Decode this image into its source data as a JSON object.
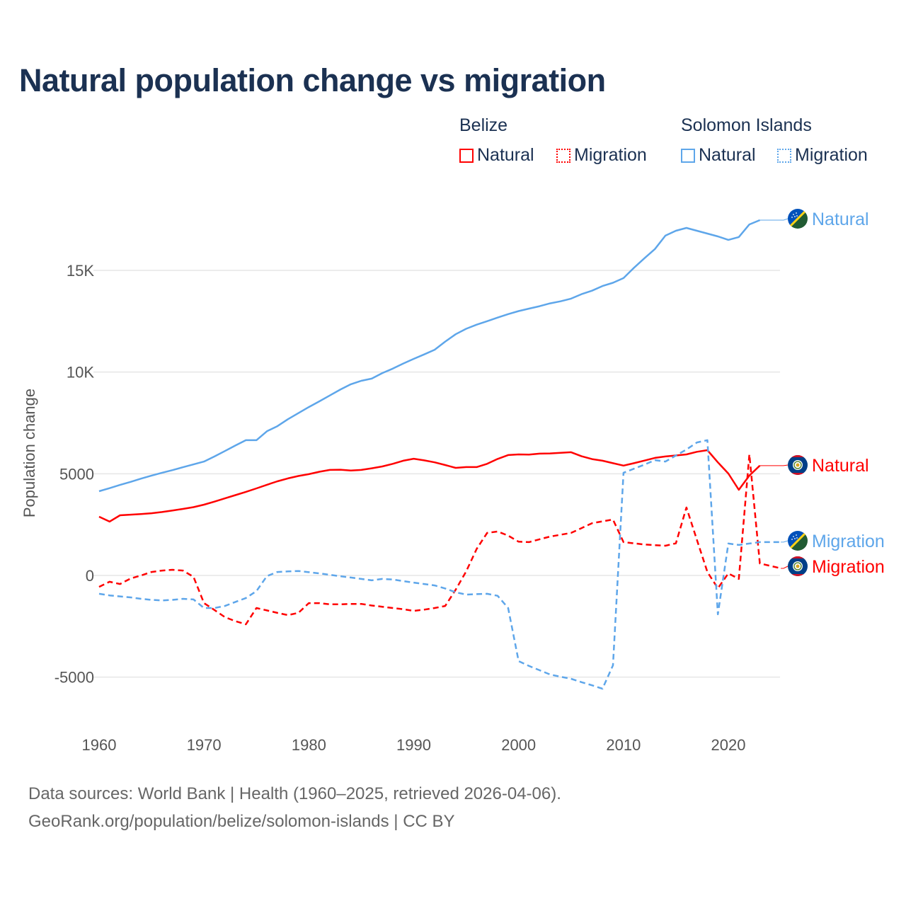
{
  "title": "Natural population change vs migration",
  "legend": {
    "groups": [
      {
        "name": "Belize",
        "items": [
          "Natural",
          "Migration"
        ]
      },
      {
        "name": "Solomon Islands",
        "items": [
          "Natural",
          "Migration"
        ]
      }
    ]
  },
  "footer": {
    "line1": "Data sources: World Bank | Health (1960–2025, retrieved 2026-04-06).",
    "line2": "GeoRank.org/population/belize/solomon-islands | CC BY"
  },
  "colors": {
    "belize": "#ff0000",
    "solomon": "#5ea6ea",
    "title": "#1b3152",
    "grid": "#e6e6e6"
  },
  "chart_data": {
    "type": "line",
    "title": "Natural population change vs migration",
    "xlabel": "",
    "ylabel": "Population change",
    "xlim": [
      1960,
      2025
    ],
    "ylim": [
      -7500,
      19500
    ],
    "x_ticks": [
      1960,
      1970,
      1980,
      1990,
      2000,
      2010,
      2020
    ],
    "y_ticks": [
      -5000,
      0,
      5000,
      10000,
      15000
    ],
    "y_tick_labels": [
      "-5000",
      "0",
      "5000",
      "10K",
      "15K"
    ],
    "grid": true,
    "legend_position": "top-right",
    "start_year": 1960,
    "series": [
      {
        "country": "Belize",
        "name": "Natural",
        "style": "solid",
        "color": "#ff0000",
        "end_label": "Natural",
        "flag": "belize-flag",
        "values": [
          2890,
          2650,
          2960,
          2990,
          3020,
          3060,
          3120,
          3190,
          3270,
          3360,
          3480,
          3630,
          3790,
          3950,
          4110,
          4280,
          4460,
          4630,
          4770,
          4890,
          4980,
          5100,
          5190,
          5200,
          5160,
          5190,
          5270,
          5360,
          5490,
          5640,
          5740,
          5660,
          5560,
          5430,
          5290,
          5330,
          5330,
          5490,
          5730,
          5920,
          5950,
          5940,
          5990,
          6000,
          6030,
          6060,
          5860,
          5720,
          5640,
          5520,
          5400,
          5520,
          5650,
          5780,
          5850,
          5900,
          5950,
          6080,
          6160,
          5560,
          5010,
          4210,
          4910,
          5400
        ]
      },
      {
        "country": "Belize",
        "name": "Migration",
        "style": "dashed",
        "color": "#ff0000",
        "end_label": "Migration",
        "flag": "belize-flag",
        "values": [
          -560,
          -310,
          -420,
          -150,
          0,
          170,
          240,
          280,
          240,
          -70,
          -1360,
          -1700,
          -2050,
          -2250,
          -2400,
          -1600,
          -1720,
          -1840,
          -1950,
          -1840,
          -1360,
          -1360,
          -1420,
          -1420,
          -1400,
          -1400,
          -1480,
          -1540,
          -1600,
          -1660,
          -1740,
          -1680,
          -1600,
          -1500,
          -700,
          200,
          1300,
          2090,
          2160,
          1960,
          1660,
          1640,
          1780,
          1910,
          2000,
          2090,
          2330,
          2570,
          2660,
          2750,
          1640,
          1580,
          1520,
          1490,
          1460,
          1580,
          3340,
          1750,
          170,
          -630,
          100,
          -170,
          5950,
          590,
          470,
          350
        ]
      },
      {
        "country": "Solomon Islands",
        "name": "Natural",
        "style": "solid",
        "color": "#5ea6ea",
        "end_label": "Natural",
        "flag": "solomon-islands-flag",
        "values": [
          4140,
          4290,
          4450,
          4600,
          4760,
          4910,
          5050,
          5180,
          5320,
          5460,
          5600,
          5850,
          6120,
          6390,
          6650,
          6650,
          7090,
          7340,
          7680,
          7980,
          8280,
          8560,
          8850,
          9140,
          9400,
          9570,
          9680,
          9950,
          10170,
          10420,
          10650,
          10870,
          11100,
          11500,
          11860,
          12130,
          12330,
          12500,
          12680,
          12850,
          13000,
          13120,
          13240,
          13380,
          13480,
          13610,
          13830,
          14000,
          14230,
          14390,
          14620,
          15130,
          15600,
          16050,
          16710,
          16950,
          17090,
          16950,
          16810,
          16670,
          16500,
          16640,
          17260,
          17470
        ]
      },
      {
        "country": "Solomon Islands",
        "name": "Migration",
        "style": "dashed",
        "color": "#5ea6ea",
        "end_label": "Migration",
        "flag": "solomon-islands-flag",
        "values": [
          -900,
          -980,
          -1030,
          -1080,
          -1150,
          -1200,
          -1230,
          -1200,
          -1150,
          -1180,
          -1600,
          -1600,
          -1500,
          -1300,
          -1110,
          -770,
          -30,
          170,
          200,
          220,
          160,
          100,
          30,
          -40,
          -100,
          -170,
          -240,
          -170,
          -200,
          -280,
          -350,
          -420,
          -490,
          -640,
          -830,
          -940,
          -920,
          -900,
          -1000,
          -1600,
          -4210,
          -4450,
          -4660,
          -4870,
          -4980,
          -5080,
          -5250,
          -5400,
          -5570,
          -4420,
          5050,
          5250,
          5450,
          5670,
          5600,
          5900,
          6190,
          6540,
          6650,
          -1910,
          1570,
          1500,
          1570,
          1640,
          1640,
          1640
        ]
      }
    ]
  }
}
